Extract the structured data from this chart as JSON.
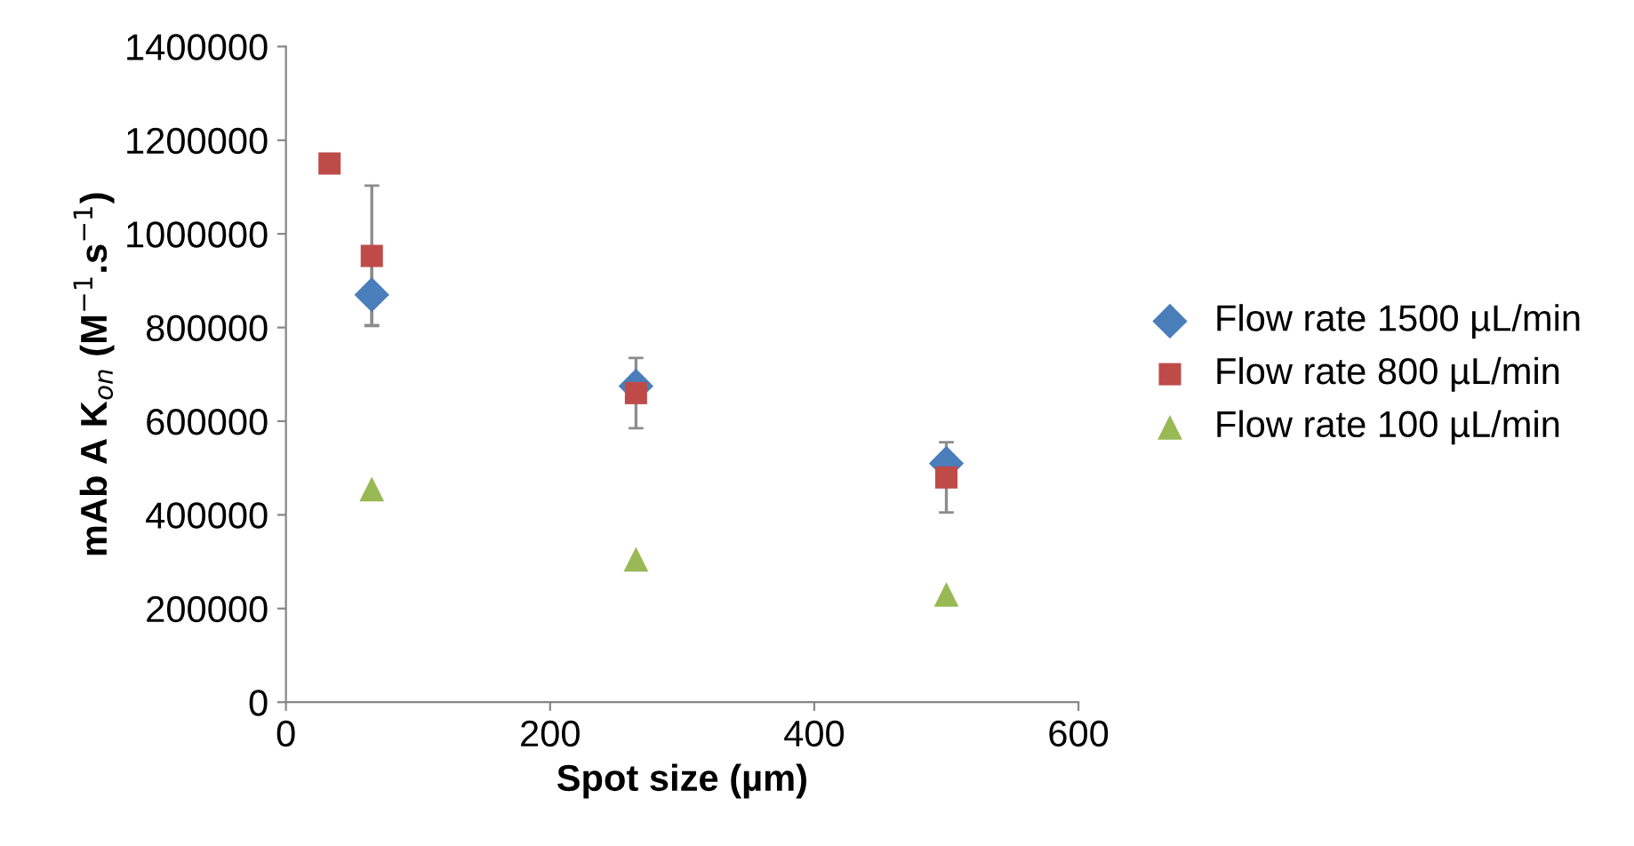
{
  "chart_data": {
    "type": "scatter",
    "xlabel": "Spot size (µm)",
    "ylabel": "mAb A K$_{on}$ (M$^{−1}$.s$^{−1}$)",
    "xlim": [
      0,
      600
    ],
    "xticks": [
      0,
      200,
      400,
      600
    ],
    "ylim": [
      0,
      1400000
    ],
    "yticks": [
      0,
      200000,
      400000,
      600000,
      800000,
      1000000,
      1200000,
      1400000
    ],
    "grid": false,
    "legend": "right",
    "series": [
      {
        "name": "Flow rate 1500 µL/min",
        "color": "#4a7ebb",
        "marker": "diamond",
        "x": [
          65,
          265,
          500
        ],
        "values": [
          870000,
          675000,
          510000
        ],
        "errors": [
          65000,
          null,
          null
        ]
      },
      {
        "name": "Flow rate 800 µL/min",
        "color": "#be4b48",
        "marker": "square",
        "x": [
          33,
          65,
          265,
          500
        ],
        "values": [
          1150000,
          953000,
          660000,
          480000
        ],
        "errors": [
          null,
          150000,
          75000,
          75000
        ]
      },
      {
        "name": "Flow rate 100 µL/min",
        "color": "#98b954",
        "marker": "triangle",
        "x": [
          65,
          265,
          500
        ],
        "values": [
          455000,
          305000,
          230000
        ]
      }
    ]
  }
}
